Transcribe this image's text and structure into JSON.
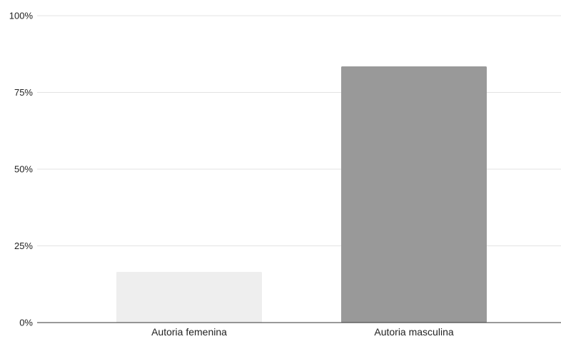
{
  "chart_data": {
    "type": "bar",
    "categories": [
      "Autoria femenina",
      "Autoria masculina"
    ],
    "values": [
      16.5,
      83.5
    ],
    "colors": [
      "#eeeeee",
      "#999999"
    ],
    "ylim": [
      0,
      100
    ],
    "yticks": [
      0,
      25,
      50,
      75,
      100
    ],
    "ytick_labels": [
      "0%",
      "25%",
      "50%",
      "75%",
      "100%"
    ],
    "grid": true,
    "legend": "none",
    "title": "",
    "xlabel": "",
    "ylabel": ""
  }
}
